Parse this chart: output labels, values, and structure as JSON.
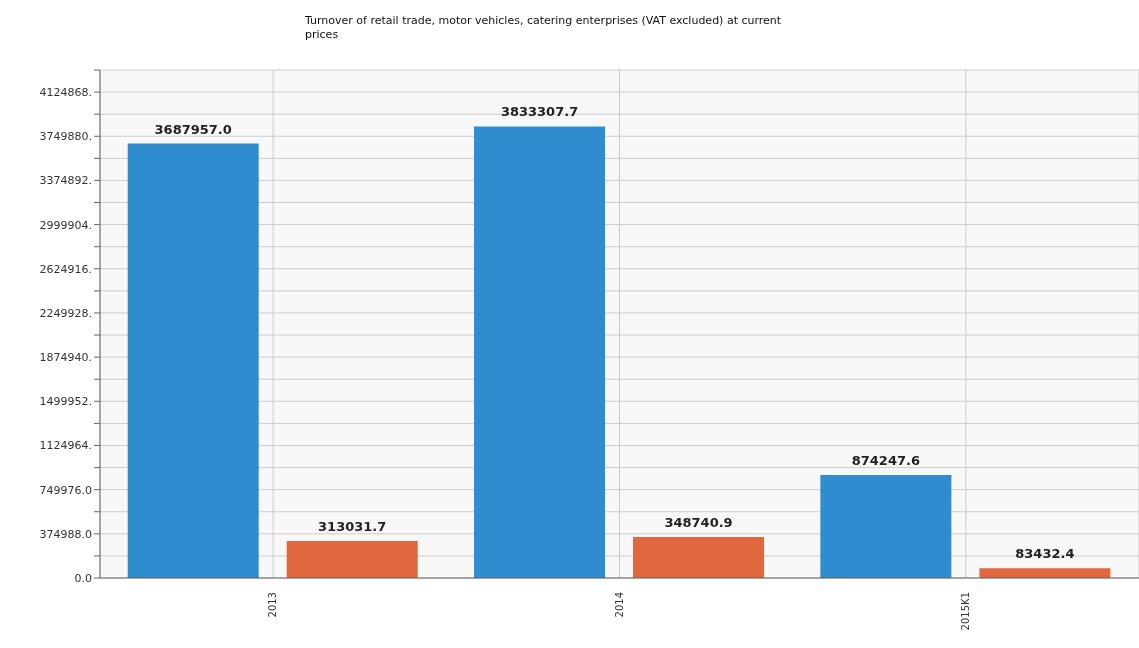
{
  "chart_data": {
    "type": "bar",
    "title": "Turnover of retail trade, motor vehicles, catering enterprises (VAT excluded) at current prices",
    "categories": [
      "2013",
      "2014",
      "2015K1"
    ],
    "series": [
      {
        "color": "#2e8ccf",
        "values": [
          3687957.0,
          3833307.7,
          874247.6
        ],
        "value_labels": [
          "3687957.0",
          "3833307.7",
          "874247.6"
        ]
      },
      {
        "color": "#e0673e",
        "values": [
          313031.7,
          348740.9,
          83432.4
        ],
        "value_labels": [
          "313031.7",
          "348740.9",
          "83432.4"
        ]
      }
    ],
    "ylim": [
      0,
      4312362
    ],
    "yticks": [
      {
        "value": 0,
        "label": "0.0"
      },
      {
        "value": 187494,
        "label": null
      },
      {
        "value": 374988,
        "label": "374988.0"
      },
      {
        "value": 562482,
        "label": null
      },
      {
        "value": 749976,
        "label": "749976.0"
      },
      {
        "value": 937470,
        "label": null
      },
      {
        "value": 1124964,
        "label": "1124964."
      },
      {
        "value": 1312458,
        "label": null
      },
      {
        "value": 1499952,
        "label": "1499952."
      },
      {
        "value": 1687446,
        "label": null
      },
      {
        "value": 1874940,
        "label": "1874940."
      },
      {
        "value": 2062434,
        "label": null
      },
      {
        "value": 2249928,
        "label": "2249928."
      },
      {
        "value": 2437422,
        "label": null
      },
      {
        "value": 2624916,
        "label": "2624916."
      },
      {
        "value": 2812410,
        "label": null
      },
      {
        "value": 2999904,
        "label": "2999904."
      },
      {
        "value": 3187398,
        "label": null
      },
      {
        "value": 3374892,
        "label": "3374892."
      },
      {
        "value": 3562386,
        "label": null
      },
      {
        "value": 3749880,
        "label": "3749880."
      },
      {
        "value": 3937374,
        "label": null
      },
      {
        "value": 4124868,
        "label": "4124868."
      },
      {
        "value": 4312362,
        "label": null
      }
    ],
    "grid": true
  }
}
